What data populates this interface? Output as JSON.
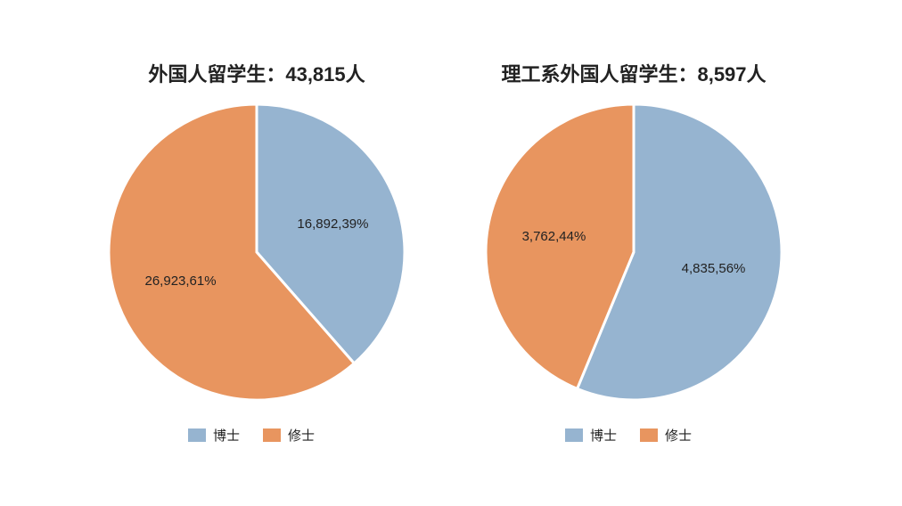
{
  "colors": {
    "doctor": "#96b4d0",
    "master": "#e8955f"
  },
  "chart_data": [
    {
      "type": "pie",
      "title": "外国人留学生：43,815人",
      "slices": [
        {
          "name": "博士",
          "value": 16892,
          "percent": 39,
          "label": "16,892,39%"
        },
        {
          "name": "修士",
          "value": 26923,
          "percent": 61,
          "label": "26,923,61%"
        }
      ],
      "legend": [
        "博士",
        "修士"
      ],
      "legend_position": "bottom"
    },
    {
      "type": "pie",
      "title": "理工系外国人留学生：8,597人",
      "slices": [
        {
          "name": "博士",
          "value": 4835,
          "percent": 56,
          "label": "4,835,56%"
        },
        {
          "name": "修士",
          "value": 3762,
          "percent": 44,
          "label": "3,762,44%"
        }
      ],
      "legend": [
        "博士",
        "修士"
      ],
      "legend_position": "bottom"
    }
  ]
}
